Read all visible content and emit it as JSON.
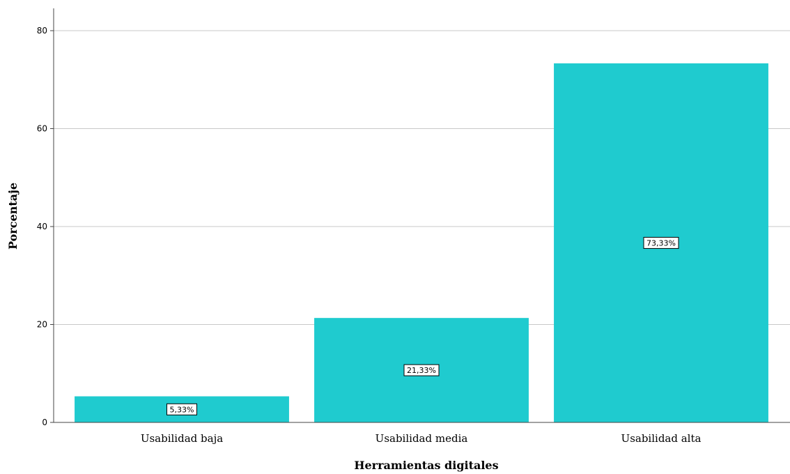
{
  "chart_data": {
    "type": "bar",
    "categories": [
      "Usabilidad baja",
      "Usabilidad media",
      "Usabilidad alta"
    ],
    "values": [
      5.33,
      21.33,
      73.33
    ],
    "data_labels": [
      "5,33%",
      "21,33%",
      "73,33%"
    ],
    "xlabel": "Herramientas digitales",
    "ylabel": "Porcentaje",
    "ylim": [
      0,
      80
    ],
    "yticks": [
      0,
      20,
      40,
      60,
      80
    ],
    "grid": true,
    "bar_color": "#1fcbcf"
  }
}
